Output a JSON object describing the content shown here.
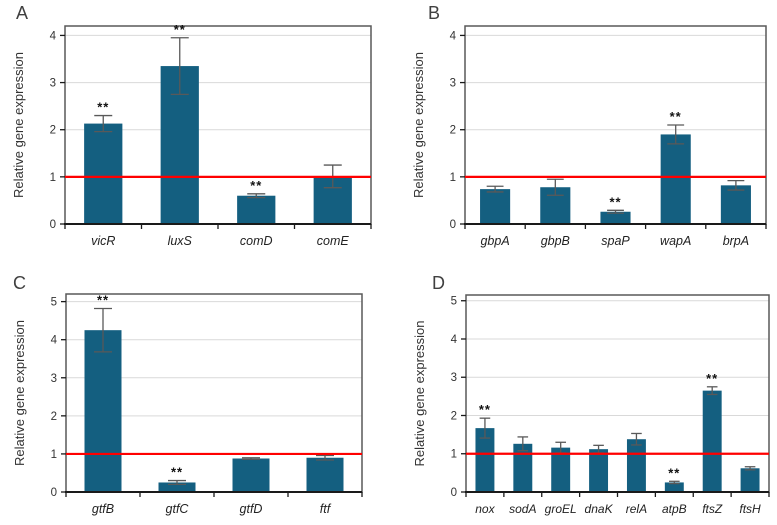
{
  "figure": {
    "background": "#ffffff",
    "ylabel": "Relative gene expression"
  },
  "colors": {
    "bar": "#145f80",
    "error_bar": "#595959",
    "reference_line": "#ff0000",
    "gridline": "#d9d9d9",
    "frame": "#595959",
    "axis": "#1a1a1a",
    "tick_text": "#333333",
    "significance": "#111111"
  },
  "chart_data": [
    {
      "type": "bar",
      "panel_label": "A",
      "title": "",
      "xlabel": "",
      "ylabel": "Relative gene expression",
      "categories": [
        "vicR",
        "luxS",
        "comD",
        "comE"
      ],
      "values": [
        2.13,
        3.35,
        0.6,
        1.01
      ],
      "errors": [
        0.17,
        0.6,
        0.04,
        0.24
      ],
      "significance": [
        "**",
        "**",
        "**",
        ""
      ],
      "yticks": [
        0,
        1,
        2,
        3,
        4
      ],
      "ylim": [
        0,
        4.2
      ],
      "reference_line": 1.0,
      "grid": true,
      "legend": "none"
    },
    {
      "type": "bar",
      "panel_label": "B",
      "title": "",
      "xlabel": "",
      "ylabel": "Relative gene expression",
      "categories": [
        "gbpA",
        "gbpB",
        "spaP",
        "wapA",
        "brpA"
      ],
      "values": [
        0.74,
        0.78,
        0.26,
        1.9,
        0.82
      ],
      "errors": [
        0.06,
        0.17,
        0.03,
        0.2,
        0.1
      ],
      "significance": [
        "",
        "",
        "**",
        "**",
        ""
      ],
      "yticks": [
        0,
        1,
        2,
        3,
        4
      ],
      "ylim": [
        0,
        4.2
      ],
      "reference_line": 1.0,
      "grid": true,
      "legend": "none"
    },
    {
      "type": "bar",
      "panel_label": "C",
      "title": "",
      "xlabel": "",
      "ylabel": "Relative gene expression",
      "categories": [
        "gtfB",
        "gtfC",
        "gtfD",
        "ftf"
      ],
      "values": [
        4.25,
        0.25,
        0.88,
        0.9
      ],
      "errors": [
        0.57,
        0.05,
        0.02,
        0.06
      ],
      "significance": [
        "**",
        "**",
        "",
        ""
      ],
      "yticks": [
        0,
        1,
        2,
        3,
        4,
        5
      ],
      "ylim": [
        0,
        5.2
      ],
      "reference_line": 1.0,
      "grid": true,
      "legend": "none"
    },
    {
      "type": "bar",
      "panel_label": "D",
      "title": "",
      "xlabel": "",
      "ylabel": "Relative gene expression",
      "categories": [
        "nox",
        "sodA",
        "groEL",
        "dnaK",
        "relA",
        "atpB",
        "ftsZ",
        "ftsH"
      ],
      "values": [
        1.67,
        1.26,
        1.16,
        1.12,
        1.38,
        0.25,
        2.65,
        0.62
      ],
      "errors": [
        0.26,
        0.18,
        0.14,
        0.1,
        0.15,
        0.03,
        0.1,
        0.04
      ],
      "significance": [
        "**",
        "",
        "",
        "",
        "",
        "**",
        "**",
        ""
      ],
      "yticks": [
        0,
        1,
        2,
        3,
        4,
        5
      ],
      "ylim": [
        0,
        5.15
      ],
      "reference_line": 1.0,
      "grid": true,
      "legend": "none"
    }
  ]
}
